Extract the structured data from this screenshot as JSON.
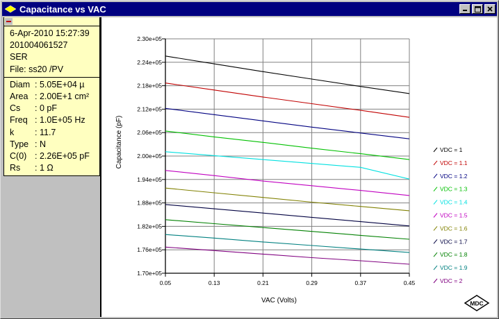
{
  "window": {
    "title": "Capacitance vs VAC",
    "buttons": {
      "minimize": "_",
      "maximize": "□",
      "close": "×"
    }
  },
  "info_panel": {
    "collapse_label": "−",
    "header": {
      "date": "6-Apr-2010 15:27:39",
      "id": "201004061527",
      "mode": "SER",
      "file": "File: ss20 /PV"
    },
    "params": [
      {
        "key": "Diam",
        "sep": ":",
        "value": "5.05E+04 µ"
      },
      {
        "key": "Area",
        "sep": ":",
        "value": "2.00E+1 cm²"
      },
      {
        "key": "Cs",
        "sep": ":",
        "value": "0 pF"
      },
      {
        "key": "Freq",
        "sep": ":",
        "value": "1.0E+05 Hz"
      },
      {
        "key": "k",
        "sep": ":",
        "value": "11.7"
      },
      {
        "key": "Type",
        "sep": ":",
        "value": "N"
      },
      {
        "key": "C(0)",
        "sep": ":",
        "value": "2.26E+05 pF"
      },
      {
        "key": "Rs",
        "sep": ":",
        "value": "1 Ω"
      }
    ]
  },
  "logo": {
    "text": "MDC"
  },
  "chart_data": {
    "type": "line",
    "title": "Capacitance vs VAC",
    "xlabel": "VAC (Volts)",
    "ylabel": "Capacitance (pF)",
    "xlim": [
      0.05,
      0.45
    ],
    "ylim": [
      170000,
      230000
    ],
    "x_ticks": [
      "0.05",
      "0.13",
      "0.21",
      "0.29",
      "0.37",
      "0.45"
    ],
    "y_ticks": [
      "2.30e+05",
      "2.24e+05",
      "2.18e+05",
      "2.12e+05",
      "2.06e+05",
      "2.00e+05",
      "1.94e+05",
      "1.88e+05",
      "1.82e+05",
      "1.76e+05",
      "1.70e+05"
    ],
    "grid": true,
    "legend_position": "right",
    "x": [
      0.05,
      0.13,
      0.21,
      0.29,
      0.37,
      0.45
    ],
    "series": [
      {
        "name": "VDC = 1",
        "color": "#000000",
        "values": [
          225600,
          223600,
          221600,
          219700,
          217800,
          216000
        ]
      },
      {
        "name": "VDC = 1.1",
        "color": "#c00000",
        "values": [
          218700,
          216900,
          215100,
          213400,
          211700,
          209900
        ]
      },
      {
        "name": "VDC = 1.2",
        "color": "#000080",
        "values": [
          212200,
          210600,
          209000,
          207400,
          205900,
          204400
        ]
      },
      {
        "name": "VDC = 1.3",
        "color": "#00c000",
        "values": [
          206400,
          204900,
          203500,
          202000,
          200600,
          199100
        ]
      },
      {
        "name": "VDC = 1.4",
        "color": "#00e0e0",
        "values": [
          201100,
          200100,
          199100,
          198100,
          197100,
          194100
        ]
      },
      {
        "name": "VDC = 1.5",
        "color": "#c000c0",
        "values": [
          196300,
          195000,
          193600,
          192400,
          191200,
          189900
        ]
      },
      {
        "name": "VDC = 1.6",
        "color": "#808000",
        "values": [
          191800,
          190600,
          189400,
          188200,
          187100,
          186000
        ]
      },
      {
        "name": "VDC = 1.7",
        "color": "#000040",
        "values": [
          187600,
          186500,
          185400,
          184300,
          183200,
          182100
        ]
      },
      {
        "name": "VDC = 1.8",
        "color": "#008000",
        "values": [
          183700,
          182700,
          181700,
          180700,
          179700,
          178700
        ]
      },
      {
        "name": "VDC = 1.9",
        "color": "#008080",
        "values": [
          179900,
          179000,
          178000,
          177100,
          176200,
          175300
        ]
      },
      {
        "name": "VDC = 2",
        "color": "#800080",
        "values": [
          176700,
          175800,
          174900,
          174000,
          173200,
          172300
        ]
      }
    ]
  }
}
